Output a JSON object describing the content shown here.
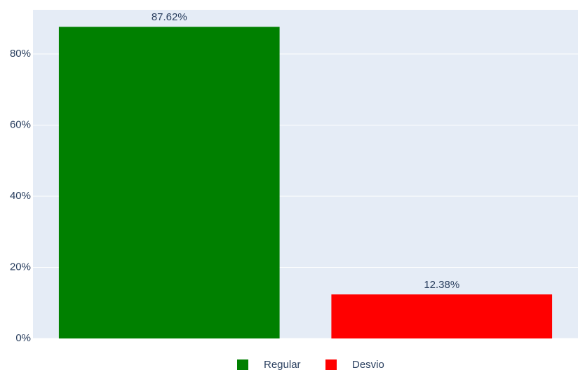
{
  "chart_data": {
    "type": "bar",
    "series": [
      {
        "name": "Regular",
        "color": "#008000",
        "values": [
          87.62
        ],
        "value_labels": [
          "87.62%"
        ]
      },
      {
        "name": "Desvio",
        "color": "#ff0000",
        "values": [
          12.38
        ],
        "value_labels": [
          "12.38%"
        ]
      }
    ],
    "ylim": [
      0,
      92.4
    ],
    "yticks": [
      {
        "value": 0,
        "label": "0%"
      },
      {
        "value": 20,
        "label": "20%"
      },
      {
        "value": 40,
        "label": "40%"
      },
      {
        "value": 60,
        "label": "60%"
      },
      {
        "value": 80,
        "label": "80%"
      }
    ],
    "grid": true,
    "legend": "bottom"
  }
}
